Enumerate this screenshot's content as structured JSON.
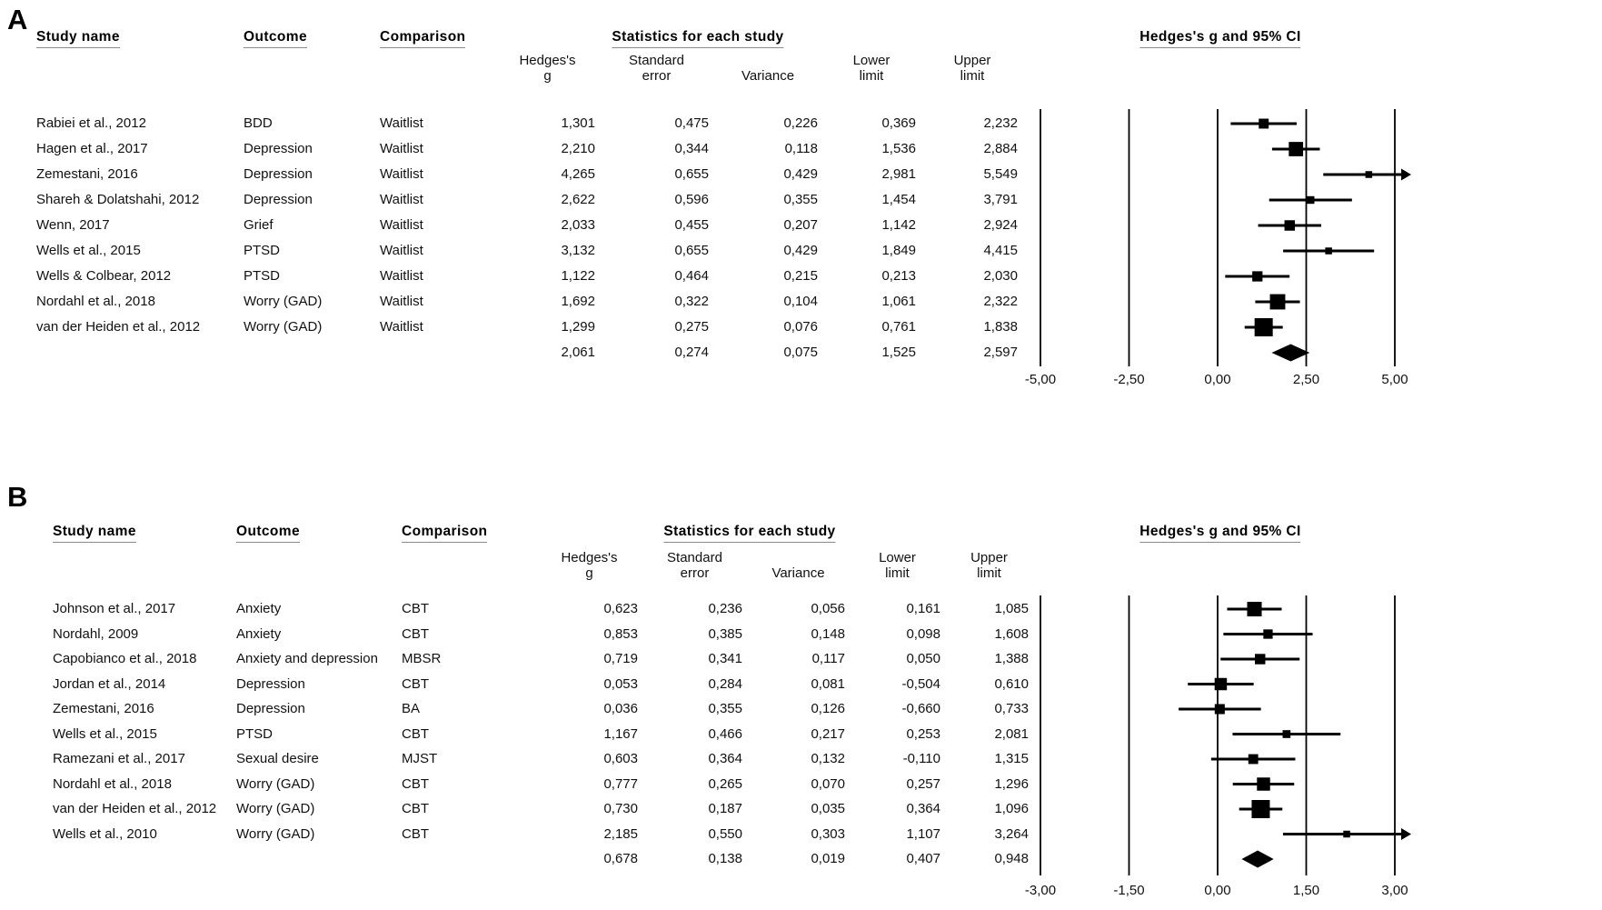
{
  "chart_data": [
    {
      "type": "scatter",
      "variant": "forest_plot",
      "panel_label": "A",
      "columns": {
        "study": "Study name",
        "outcome": "Outcome",
        "comparison": "Comparison",
        "stats_group": "Statistics for each study",
        "plot_group": "Hedges's g and 95% CI",
        "stat_headers": [
          [
            "Hedges's",
            "g"
          ],
          [
            "Standard",
            "error"
          ],
          [
            "",
            "Variance"
          ],
          [
            "Lower",
            "limit"
          ],
          [
            "Upper",
            "limit"
          ]
        ]
      },
      "axis": {
        "min": -5,
        "max": 5,
        "tick_values": [
          -5,
          -2.5,
          0,
          2.5,
          5
        ],
        "tick_labels": [
          "-5,00",
          "-2,50",
          "0,00",
          "2,50",
          "5,00"
        ]
      },
      "rows": [
        {
          "study": "Rabiei et al., 2012",
          "outcome": "BDD",
          "comparison": "Waitlist",
          "hedges_g": "1,301",
          "standard_error": "0,475",
          "variance": "0,226",
          "lower_limit": "0,369",
          "upper_limit": "2,232",
          "g": 1.301,
          "se": 0.475,
          "var": 0.226,
          "lo": 0.369,
          "hi": 2.232
        },
        {
          "study": "Hagen et al., 2017",
          "outcome": "Depression",
          "comparison": "Waitlist",
          "hedges_g": "2,210",
          "standard_error": "0,344",
          "variance": "0,118",
          "lower_limit": "1,536",
          "upper_limit": "2,884",
          "g": 2.21,
          "se": 0.344,
          "var": 0.118,
          "lo": 1.536,
          "hi": 2.884
        },
        {
          "study": "Zemestani, 2016",
          "outcome": "Depression",
          "comparison": "Waitlist",
          "hedges_g": "4,265",
          "standard_error": "0,655",
          "variance": "0,429",
          "lower_limit": "2,981",
          "upper_limit": "5,549",
          "g": 4.265,
          "se": 0.655,
          "var": 0.429,
          "lo": 2.981,
          "hi": 5.549
        },
        {
          "study": "Shareh & Dolatshahi, 2012",
          "outcome": "Depression",
          "comparison": "Waitlist",
          "hedges_g": "2,622",
          "standard_error": "0,596",
          "variance": "0,355",
          "lower_limit": "1,454",
          "upper_limit": "3,791",
          "g": 2.622,
          "se": 0.596,
          "var": 0.355,
          "lo": 1.454,
          "hi": 3.791
        },
        {
          "study": "Wenn, 2017",
          "outcome": "Grief",
          "comparison": "Waitlist",
          "hedges_g": "2,033",
          "standard_error": "0,455",
          "variance": "0,207",
          "lower_limit": "1,142",
          "upper_limit": "2,924",
          "g": 2.033,
          "se": 0.455,
          "var": 0.207,
          "lo": 1.142,
          "hi": 2.924
        },
        {
          "study": "Wells et al., 2015",
          "outcome": "PTSD",
          "comparison": "Waitlist",
          "hedges_g": "3,132",
          "standard_error": "0,655",
          "variance": "0,429",
          "lower_limit": "1,849",
          "upper_limit": "4,415",
          "g": 3.132,
          "se": 0.655,
          "var": 0.429,
          "lo": 1.849,
          "hi": 4.415
        },
        {
          "study": "Wells & Colbear, 2012",
          "outcome": "PTSD",
          "comparison": "Waitlist",
          "hedges_g": "1,122",
          "standard_error": "0,464",
          "variance": "0,215",
          "lower_limit": "0,213",
          "upper_limit": "2,030",
          "g": 1.122,
          "se": 0.464,
          "var": 0.215,
          "lo": 0.213,
          "hi": 2.03
        },
        {
          "study": "Nordahl et al., 2018",
          "outcome": "Worry (GAD)",
          "comparison": "Waitlist",
          "hedges_g": "1,692",
          "standard_error": "0,322",
          "variance": "0,104",
          "lower_limit": "1,061",
          "upper_limit": "2,322",
          "g": 1.692,
          "se": 0.322,
          "var": 0.104,
          "lo": 1.061,
          "hi": 2.322
        },
        {
          "study": "van der Heiden et al., 2012",
          "outcome": "Worry (GAD)",
          "comparison": "Waitlist",
          "hedges_g": "1,299",
          "standard_error": "0,275",
          "variance": "0,076",
          "lower_limit": "0,761",
          "upper_limit": "1,838",
          "g": 1.299,
          "se": 0.275,
          "var": 0.076,
          "lo": 0.761,
          "hi": 1.838
        }
      ],
      "summary": {
        "hedges_g": "2,061",
        "standard_error": "0,274",
        "variance": "0,075",
        "lower_limit": "1,525",
        "upper_limit": "2,597",
        "g": 2.061,
        "se": 0.274,
        "var": 0.075,
        "lo": 1.525,
        "hi": 2.597
      }
    },
    {
      "type": "scatter",
      "variant": "forest_plot",
      "panel_label": "B",
      "columns": {
        "study": "Study name",
        "outcome": "Outcome",
        "comparison": "Comparison",
        "stats_group": "Statistics for each study",
        "plot_group": "Hedges's g and 95% CI",
        "stat_headers": [
          [
            "Hedges's",
            "g"
          ],
          [
            "Standard",
            "error"
          ],
          [
            "",
            "Variance"
          ],
          [
            "Lower",
            "limit"
          ],
          [
            "Upper",
            "limit"
          ]
        ]
      },
      "axis": {
        "min": -3,
        "max": 3,
        "tick_values": [
          -3,
          -1.5,
          0,
          1.5,
          3
        ],
        "tick_labels": [
          "-3,00",
          "-1,50",
          "0,00",
          "1,50",
          "3,00"
        ]
      },
      "rows": [
        {
          "study": "Johnson et al., 2017",
          "outcome": "Anxiety",
          "comparison": "CBT",
          "hedges_g": "0,623",
          "standard_error": "0,236",
          "variance": "0,056",
          "lower_limit": "0,161",
          "upper_limit": "1,085",
          "g": 0.623,
          "se": 0.236,
          "var": 0.056,
          "lo": 0.161,
          "hi": 1.085
        },
        {
          "study": "Nordahl, 2009",
          "outcome": "Anxiety",
          "comparison": "CBT",
          "hedges_g": "0,853",
          "standard_error": "0,385",
          "variance": "0,148",
          "lower_limit": "0,098",
          "upper_limit": "1,608",
          "g": 0.853,
          "se": 0.385,
          "var": 0.148,
          "lo": 0.098,
          "hi": 1.608
        },
        {
          "study": "Capobianco et al., 2018",
          "outcome": "Anxiety and depression",
          "comparison": "MBSR",
          "hedges_g": "0,719",
          "standard_error": "0,341",
          "variance": "0,117",
          "lower_limit": "0,050",
          "upper_limit": "1,388",
          "g": 0.719,
          "se": 0.341,
          "var": 0.117,
          "lo": 0.05,
          "hi": 1.388
        },
        {
          "study": "Jordan et al., 2014",
          "outcome": "Depression",
          "comparison": "CBT",
          "hedges_g": "0,053",
          "standard_error": "0,284",
          "variance": "0,081",
          "lower_limit": "-0,504",
          "upper_limit": "0,610",
          "g": 0.053,
          "se": 0.284,
          "var": 0.081,
          "lo": -0.504,
          "hi": 0.61
        },
        {
          "study": "Zemestani, 2016",
          "outcome": "Depression",
          "comparison": "BA",
          "hedges_g": "0,036",
          "standard_error": "0,355",
          "variance": "0,126",
          "lower_limit": "-0,660",
          "upper_limit": "0,733",
          "g": 0.036,
          "se": 0.355,
          "var": 0.126,
          "lo": -0.66,
          "hi": 0.733
        },
        {
          "study": "Wells et al., 2015",
          "outcome": "PTSD",
          "comparison": "CBT",
          "hedges_g": "1,167",
          "standard_error": "0,466",
          "variance": "0,217",
          "lower_limit": "0,253",
          "upper_limit": "2,081",
          "g": 1.167,
          "se": 0.466,
          "var": 0.217,
          "lo": 0.253,
          "hi": 2.081
        },
        {
          "study": "Ramezani et al., 2017",
          "outcome": "Sexual desire",
          "comparison": "MJST",
          "hedges_g": "0,603",
          "standard_error": "0,364",
          "variance": "0,132",
          "lower_limit": "-0,110",
          "upper_limit": "1,315",
          "g": 0.603,
          "se": 0.364,
          "var": 0.132,
          "lo": -0.11,
          "hi": 1.315
        },
        {
          "study": "Nordahl et al., 2018",
          "outcome": "Worry (GAD)",
          "comparison": "CBT",
          "hedges_g": "0,777",
          "standard_error": "0,265",
          "variance": "0,070",
          "lower_limit": "0,257",
          "upper_limit": "1,296",
          "g": 0.777,
          "se": 0.265,
          "var": 0.07,
          "lo": 0.257,
          "hi": 1.296
        },
        {
          "study": "van der Heiden et al., 2012",
          "outcome": "Worry (GAD)",
          "comparison": "CBT",
          "hedges_g": "0,730",
          "standard_error": "0,187",
          "variance": "0,035",
          "lower_limit": "0,364",
          "upper_limit": "1,096",
          "g": 0.73,
          "se": 0.187,
          "var": 0.035,
          "lo": 0.364,
          "hi": 1.096
        },
        {
          "study": "Wells et al., 2010",
          "outcome": "Worry (GAD)",
          "comparison": "CBT",
          "hedges_g": "2,185",
          "standard_error": "0,550",
          "variance": "0,303",
          "lower_limit": "1,107",
          "upper_limit": "3,264",
          "g": 2.185,
          "se": 0.55,
          "var": 0.303,
          "lo": 1.107,
          "hi": 3.264
        }
      ],
      "summary": {
        "hedges_g": "0,678",
        "standard_error": "0,138",
        "variance": "0,019",
        "lower_limit": "0,407",
        "upper_limit": "0,948",
        "g": 0.678,
        "se": 0.138,
        "var": 0.019,
        "lo": 0.407,
        "hi": 0.948
      }
    }
  ]
}
